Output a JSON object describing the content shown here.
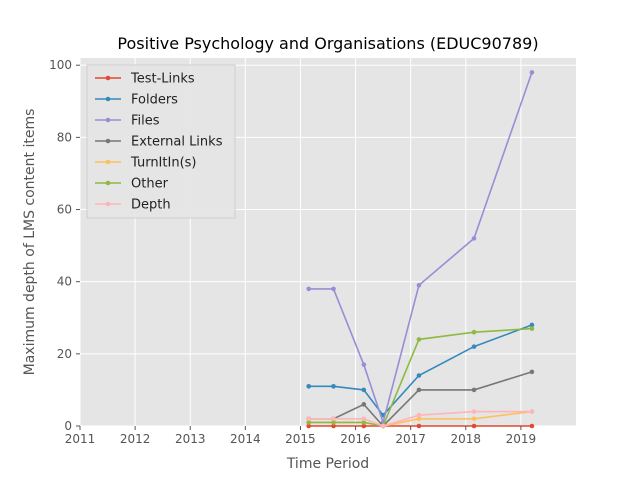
{
  "chart_data": {
    "type": "line",
    "title": "Positive Psychology and Organisations (EDUC90789)",
    "xlabel": "Time Period",
    "ylabel": "Maximum depth of LMS content items",
    "xlim": [
      2011,
      2020
    ],
    "ylim": [
      0,
      102
    ],
    "xticks": [
      "2011",
      "2012",
      "2013",
      "2014",
      "2015",
      "2016",
      "2017",
      "2018",
      "2019"
    ],
    "yticks": [
      "0",
      "20",
      "40",
      "60",
      "80",
      "100"
    ],
    "grid": true,
    "legend_position": "upper-left",
    "x": [
      2015.15,
      2015.6,
      2016.15,
      2016.5,
      2017.15,
      2018.15,
      2019.2
    ],
    "series": [
      {
        "name": "Test-Links",
        "color": "#E24A33",
        "values": [
          0,
          0,
          0,
          0,
          0,
          0,
          0
        ]
      },
      {
        "name": "Folders",
        "color": "#348ABD",
        "values": [
          11,
          11,
          10,
          3,
          14,
          22,
          28
        ]
      },
      {
        "name": "Files",
        "color": "#988ED5",
        "values": [
          38,
          38,
          17,
          1,
          39,
          52,
          98
        ]
      },
      {
        "name": "External Links",
        "color": "#777777",
        "values": [
          2,
          2,
          6,
          0,
          10,
          10,
          15
        ]
      },
      {
        "name": "TurnItIn(s)",
        "color": "#FBC15E",
        "values": [
          1,
          1,
          1,
          0,
          2,
          2,
          4
        ]
      },
      {
        "name": "Other",
        "color": "#8EBA42",
        "values": [
          1,
          1,
          1,
          0,
          24,
          26,
          27
        ]
      },
      {
        "name": "Depth",
        "color": "#FFB5B8",
        "values": [
          2,
          2,
          2,
          0,
          3,
          4,
          4
        ]
      }
    ]
  }
}
